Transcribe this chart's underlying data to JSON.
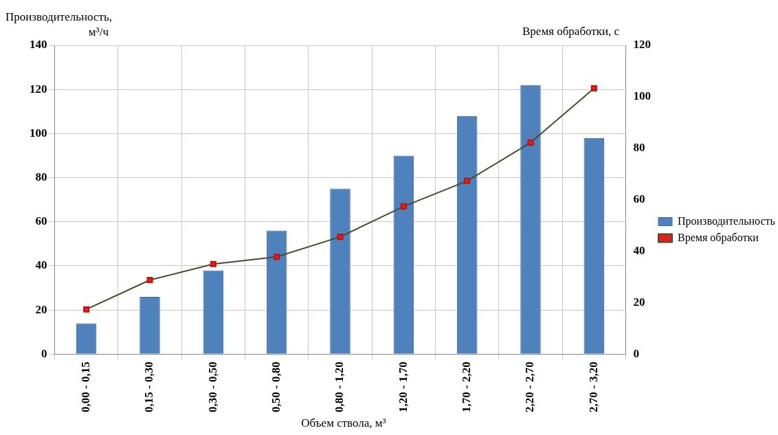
{
  "chart_data": {
    "type": "bar",
    "xlabel": "Объем ствола, м³",
    "ylabel": "Производительность, м³/ч",
    "y2label": "Время обработки, с",
    "categories": [
      "0,00 - 0,15",
      "0,15 - 0,30",
      "0,30 - 0,50",
      "0,50 - 0,80",
      "0,80 - 1,20",
      "1,20 - 1,70",
      "1,70 - 2,20",
      "2,20 - 2,70",
      "2,70 - 3,20"
    ],
    "series": [
      {
        "name": "Производительность",
        "color": "#4f81bd",
        "values": [
          14,
          26,
          38,
          56,
          75,
          90,
          108,
          122,
          98
        ]
      },
      {
        "name": "Время обработки",
        "type": "line",
        "axis": "y2",
        "color": "#4a4a2a",
        "marker": "square",
        "values": [
          17.4,
          28.8,
          35,
          37.8,
          45.6,
          57.4,
          67.3,
          82.2,
          103.3
        ]
      }
    ],
    "ylim": [
      0,
      140
    ],
    "yticks": [
      0,
      20,
      40,
      60,
      80,
      100,
      120,
      140
    ],
    "y2lim": [
      0,
      120
    ],
    "y2ticks": [
      0,
      20,
      40,
      60,
      80,
      100,
      120
    ],
    "grid": true,
    "legend": "right"
  }
}
